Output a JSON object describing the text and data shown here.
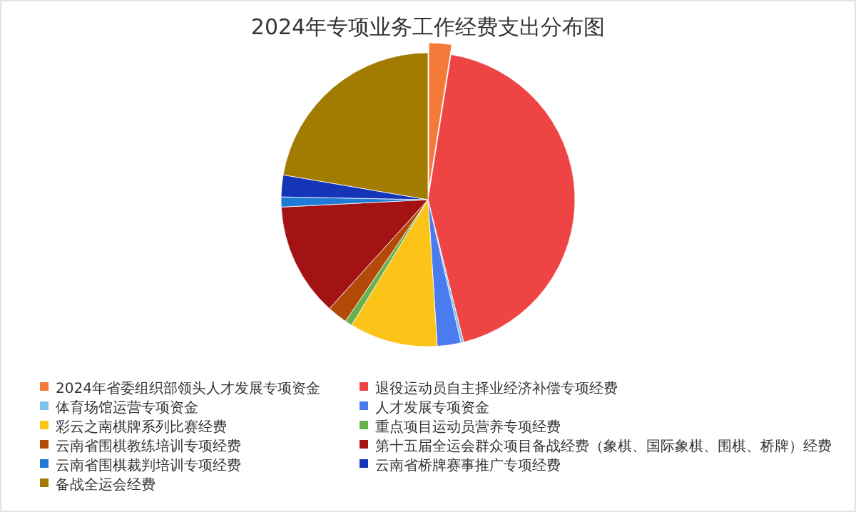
{
  "chart_data": {
    "type": "pie",
    "title": "2024年专项业务工作经费支出分布图",
    "categories": [
      "2024年省委组织部领头人才发展专项资金",
      "退役运动员自主择业经济补偿专项经费",
      "体育场馆运营专项资金",
      "人才发展专项资金",
      "彩云之南棋牌系列比赛经费",
      "重点项目运动员营养专项经费",
      "云南省围棋教练培训专项经费",
      "第十五届全运会群众项目备战经费（象棋、国际象棋、围棋、桥牌）经费",
      "云南省围棋裁判培训专项经费",
      "云南省桥牌赛事推广专项经费",
      "备战全运会经费"
    ],
    "values": [
      2.5,
      43.6,
      0.3,
      2.6,
      9.7,
      0.8,
      2.2,
      12.5,
      1.1,
      2.4,
      22.3
    ],
    "colors": [
      "#f47a3a",
      "#ef4444",
      "#7ec0ee",
      "#4a7cf0",
      "#fcc419",
      "#6ab04c",
      "#b34a0a",
      "#a41313",
      "#1e7bd6",
      "#1535b8",
      "#a27c00"
    ],
    "legend": "bottom"
  }
}
